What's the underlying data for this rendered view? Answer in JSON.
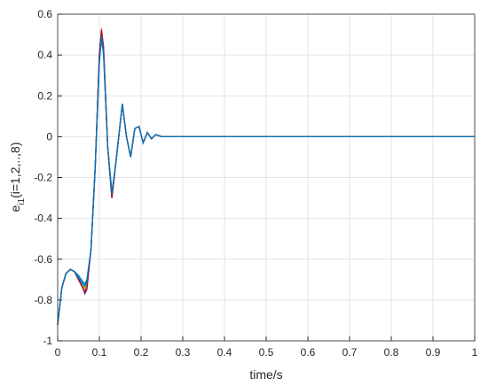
{
  "chart_data": {
    "type": "line",
    "xlabel": "time/s",
    "ylabel": {
      "main": "e",
      "sub": "i1",
      "rest": "(i=1,2,..,8)"
    },
    "x": [
      0,
      0.01,
      0.02,
      0.03,
      0.04,
      0.05,
      0.06,
      0.065,
      0.07,
      0.08,
      0.09,
      0.1,
      0.105,
      0.11,
      0.12,
      0.13,
      0.14,
      0.155,
      0.165,
      0.175,
      0.185,
      0.195,
      0.205,
      0.215,
      0.225,
      0.235,
      0.25,
      0.27,
      0.3,
      0.4,
      0.5,
      0.6,
      0.7,
      0.8,
      0.9,
      1
    ],
    "series": [
      {
        "color": "#0072bd",
        "values": [
          -0.92,
          -0.74,
          -0.67,
          -0.65,
          -0.66,
          -0.68,
          -0.71,
          -0.72,
          -0.7,
          -0.55,
          -0.15,
          0.36,
          0.48,
          0.4,
          -0.05,
          -0.27,
          -0.12,
          0.16,
          0.0,
          -0.1,
          0.04,
          0.05,
          -0.03,
          0.02,
          -0.01,
          0.01,
          0,
          0,
          0,
          0,
          0,
          0,
          0,
          0,
          0,
          0
        ]
      },
      {
        "color": "#d95319",
        "values": [
          -0.92,
          -0.74,
          -0.67,
          -0.65,
          -0.66,
          -0.7,
          -0.74,
          -0.76,
          -0.74,
          -0.55,
          -0.15,
          0.4,
          0.53,
          0.44,
          -0.05,
          -0.3,
          -0.12,
          0.16,
          0.0,
          -0.1,
          0.04,
          0.05,
          -0.03,
          0.02,
          -0.01,
          0.01,
          0,
          0,
          0,
          0,
          0,
          0,
          0,
          0,
          0,
          0
        ]
      },
      {
        "color": "#edb120",
        "values": [
          -0.92,
          -0.74,
          -0.67,
          -0.65,
          -0.66,
          -0.7,
          -0.73,
          -0.75,
          -0.73,
          -0.55,
          -0.15,
          0.39,
          0.52,
          0.43,
          -0.05,
          -0.29,
          -0.12,
          0.16,
          0.0,
          -0.1,
          0.04,
          0.05,
          -0.03,
          0.02,
          -0.01,
          0.01,
          0,
          0,
          0,
          0,
          0,
          0,
          0,
          0,
          0,
          0
        ]
      },
      {
        "color": "#7e2f8e",
        "values": [
          -0.92,
          -0.74,
          -0.67,
          -0.65,
          -0.66,
          -0.7,
          -0.74,
          -0.77,
          -0.75,
          -0.55,
          -0.15,
          0.41,
          0.52,
          0.44,
          -0.05,
          -0.3,
          -0.12,
          0.16,
          0.0,
          -0.1,
          0.04,
          0.05,
          -0.03,
          0.02,
          -0.01,
          0.01,
          0,
          0,
          0,
          0,
          0,
          0,
          0,
          0,
          0,
          0
        ]
      },
      {
        "color": "#77ac30",
        "values": [
          -0.92,
          -0.74,
          -0.67,
          -0.65,
          -0.66,
          -0.69,
          -0.73,
          -0.74,
          -0.72,
          -0.55,
          -0.15,
          0.38,
          0.51,
          0.42,
          -0.05,
          -0.29,
          -0.12,
          0.16,
          0.0,
          -0.1,
          0.04,
          0.05,
          -0.03,
          0.02,
          -0.01,
          0.01,
          0,
          0,
          0,
          0,
          0,
          0,
          0,
          0,
          0,
          0
        ]
      },
      {
        "color": "#4dbeee",
        "values": [
          -0.92,
          -0.74,
          -0.67,
          -0.65,
          -0.66,
          -0.69,
          -0.72,
          -0.73,
          -0.71,
          -0.55,
          -0.15,
          0.37,
          0.5,
          0.41,
          -0.05,
          -0.28,
          -0.12,
          0.16,
          0.0,
          -0.1,
          0.04,
          0.05,
          -0.03,
          0.02,
          -0.01,
          0.01,
          0,
          0,
          0,
          0,
          0,
          0,
          0,
          0,
          0,
          0
        ]
      },
      {
        "color": "#a2142f",
        "values": [
          -0.92,
          -0.74,
          -0.67,
          -0.65,
          -0.66,
          -0.7,
          -0.74,
          -0.76,
          -0.74,
          -0.55,
          -0.15,
          0.4,
          0.52,
          0.43,
          -0.05,
          -0.3,
          -0.12,
          0.16,
          0.0,
          -0.1,
          0.04,
          0.05,
          -0.03,
          0.02,
          -0.01,
          0.01,
          0,
          0,
          0,
          0,
          0,
          0,
          0,
          0,
          0,
          0
        ]
      },
      {
        "color": "#0072bd",
        "values": [
          -0.92,
          -0.74,
          -0.67,
          -0.65,
          -0.66,
          -0.69,
          -0.72,
          -0.73,
          -0.71,
          -0.55,
          -0.15,
          0.37,
          0.49,
          0.41,
          -0.05,
          -0.28,
          -0.12,
          0.16,
          0.0,
          -0.1,
          0.04,
          0.05,
          -0.03,
          0.02,
          -0.01,
          0.01,
          0,
          0,
          0,
          0,
          0,
          0,
          0,
          0,
          0,
          0
        ]
      }
    ],
    "xlim": [
      0,
      1
    ],
    "xticks": [
      0,
      0.1,
      0.2,
      0.3,
      0.4,
      0.5,
      0.6,
      0.7,
      0.8,
      0.9,
      1
    ],
    "ylim": [
      -1,
      0.6
    ],
    "yticks": [
      -1,
      -0.8,
      -0.6,
      -0.4,
      -0.2,
      0,
      0.2,
      0.4,
      0.6
    ],
    "grid": true
  }
}
